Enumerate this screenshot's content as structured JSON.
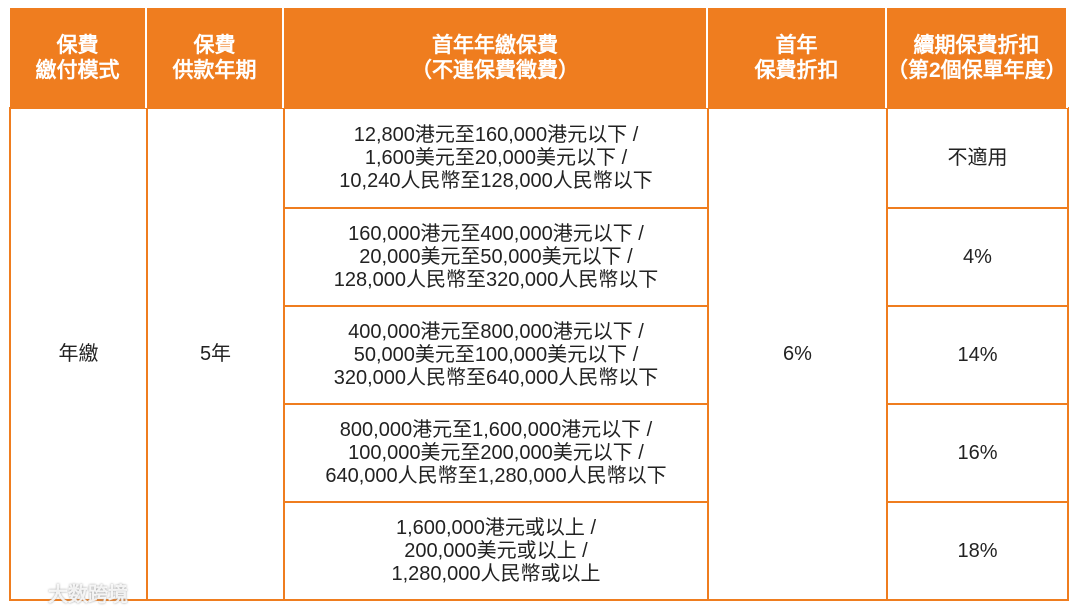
{
  "header": [
    {
      "lines": [
        "保費",
        "繳付模式"
      ]
    },
    {
      "lines": [
        "保費",
        "供款年期"
      ]
    },
    {
      "lines": [
        "首年年繳保費",
        "（不連保費徵費）"
      ]
    },
    {
      "lines": [
        "首年",
        "保費折扣"
      ]
    },
    {
      "lines": [
        "續期保費折扣",
        "（第2個保單年度）"
      ]
    }
  ],
  "body": {
    "payment_mode": "年繳",
    "premium_term": "5年",
    "first_year_discount": "6%",
    "bands": [
      {
        "premium": [
          "12,800港元至160,000港元以下 /",
          "1,600美元至20,000美元以下 /",
          "10,240人民幣至128,000人民幣以下"
        ],
        "renewal_discount": "不適用"
      },
      {
        "premium": [
          "160,000港元至400,000港元以下 /",
          "20,000美元至50,000美元以下 /",
          "128,000人民幣至320,000人民幣以下"
        ],
        "renewal_discount": "4%"
      },
      {
        "premium": [
          "400,000港元至800,000港元以下 /",
          "50,000美元至100,000美元以下 /",
          "320,000人民幣至640,000人民幣以下"
        ],
        "renewal_discount": "14%"
      },
      {
        "premium": [
          "800,000港元至1,600,000港元以下 /",
          "100,000美元至200,000美元以下 /",
          "640,000人民幣至1,280,000人民幣以下"
        ],
        "renewal_discount": "16%"
      },
      {
        "premium": [
          "1,600,000港元或以上 /",
          "200,000美元或以上 /",
          "1,280,000人民幣或以上"
        ],
        "renewal_discount": "18%"
      }
    ]
  },
  "watermark": "大数跨境"
}
